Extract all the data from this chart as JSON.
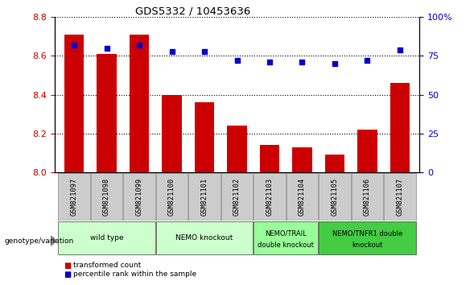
{
  "title": "GDS5332 / 10453636",
  "samples": [
    "GSM821097",
    "GSM821098",
    "GSM821099",
    "GSM821100",
    "GSM821101",
    "GSM821102",
    "GSM821103",
    "GSM821104",
    "GSM821105",
    "GSM821106",
    "GSM821107"
  ],
  "transformed_count": [
    8.71,
    8.61,
    8.71,
    8.4,
    8.36,
    8.24,
    8.14,
    8.13,
    8.09,
    8.22,
    8.46
  ],
  "percentile_rank": [
    82,
    80,
    82,
    78,
    78,
    72,
    71,
    71,
    70,
    72,
    79
  ],
  "ylim_left": [
    8.0,
    8.8
  ],
  "ylim_right": [
    0,
    100
  ],
  "yticks_left": [
    8.0,
    8.2,
    8.4,
    8.6,
    8.8
  ],
  "yticks_right": [
    0,
    25,
    50,
    75,
    100
  ],
  "bar_color": "#cc0000",
  "dot_color": "#0000cc",
  "group_spans": [
    {
      "start": 0,
      "end": 2,
      "label_top": "wild type",
      "label_bot": "",
      "color": "#ccffcc"
    },
    {
      "start": 3,
      "end": 5,
      "label_top": "NEMO knockout",
      "label_bot": "",
      "color": "#ccffcc"
    },
    {
      "start": 6,
      "end": 7,
      "label_top": "NEMO/TRAIL",
      "label_bot": "double knockout",
      "color": "#99ff99"
    },
    {
      "start": 8,
      "end": 10,
      "label_top": "NEMO/TNFR1 double",
      "label_bot": "knockout",
      "color": "#44cc44"
    }
  ],
  "genotype_label": "genotype/variation",
  "left_axis_color": "#cc0000",
  "right_axis_color": "#0000cc",
  "tick_label_bg": "#cccccc",
  "bg_color": "#ffffff"
}
